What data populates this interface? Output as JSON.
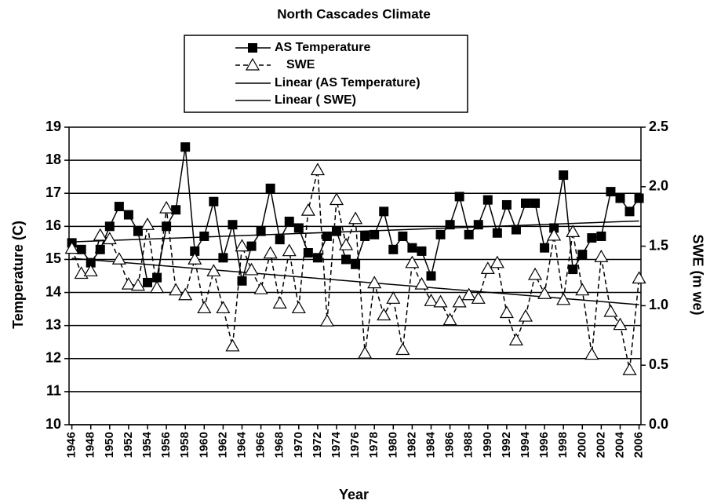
{
  "chart_data": {
    "type": "line",
    "title": "North Cascades Climate",
    "x_label": "Year",
    "y_label": "Temperature (C)",
    "y2_label": "SWE (m we)",
    "x": [
      1946,
      1947,
      1948,
      1949,
      1950,
      1951,
      1952,
      1953,
      1954,
      1955,
      1956,
      1957,
      1958,
      1959,
      1960,
      1961,
      1962,
      1963,
      1964,
      1965,
      1966,
      1967,
      1968,
      1969,
      1970,
      1971,
      1972,
      1973,
      1974,
      1975,
      1976,
      1977,
      1978,
      1979,
      1980,
      1981,
      1982,
      1983,
      1984,
      1985,
      1986,
      1987,
      1988,
      1989,
      1990,
      1991,
      1992,
      1993,
      1994,
      1995,
      1996,
      1997,
      1998,
      1999,
      2000,
      2001,
      2002,
      2003,
      2004,
      2005,
      2006
    ],
    "series": [
      {
        "name": "AS Temperature",
        "color": "#000000",
        "marker": "square",
        "dashed": false,
        "trendline": {
          "name": "Linear (AS Temperature)"
        },
        "values": [
          15.5,
          15.3,
          14.9,
          15.3,
          16.0,
          16.6,
          16.35,
          15.85,
          14.3,
          14.45,
          16.0,
          16.5,
          18.4,
          15.25,
          15.7,
          16.75,
          15.05,
          16.05,
          14.35,
          15.4,
          15.85,
          17.15,
          15.6,
          16.15,
          15.95,
          15.2,
          15.05,
          15.7,
          15.85,
          15.0,
          14.85,
          15.7,
          15.75,
          16.45,
          15.3,
          15.7,
          15.35,
          15.25,
          14.5,
          15.75,
          16.05,
          16.9,
          15.75,
          16.05,
          16.8,
          15.8,
          16.65,
          15.9,
          16.7,
          16.7,
          15.35,
          15.95,
          17.55,
          14.7,
          15.15,
          15.65,
          15.7,
          17.05,
          16.85,
          16.45,
          16.85
        ]
      },
      {
        "name": "SWE",
        "color": "#000000",
        "marker": "triangle",
        "dashed": true,
        "axis": "y2",
        "trendline": {
          "name": "Linear ( SWE)"
        },
        "values": [
          1.48,
          1.27,
          1.29,
          1.59,
          1.56,
          1.39,
          1.18,
          1.17,
          1.68,
          1.15,
          1.82,
          1.13,
          1.09,
          1.39,
          0.98,
          1.29,
          0.98,
          0.66,
          1.5,
          1.3,
          1.14,
          1.44,
          1.02,
          1.46,
          0.98,
          1.8,
          2.14,
          0.87,
          1.89,
          1.51,
          1.73,
          0.6,
          1.19,
          0.92,
          1.06,
          0.63,
          1.36,
          1.18,
          1.04,
          1.03,
          0.88,
          1.03,
          1.09,
          1.06,
          1.31,
          1.36,
          0.94,
          0.71,
          0.91,
          1.26,
          1.1,
          1.59,
          1.05,
          1.62,
          1.13,
          0.59,
          1.41,
          0.95,
          0.84,
          0.46,
          1.23
        ]
      }
    ],
    "xlim": [
      1945.7,
      2006.2
    ],
    "xticks": [
      1946,
      1948,
      1950,
      1952,
      1954,
      1956,
      1958,
      1960,
      1962,
      1964,
      1966,
      1968,
      1970,
      1972,
      1974,
      1976,
      1978,
      1980,
      1982,
      1984,
      1986,
      1988,
      1990,
      1992,
      1994,
      1996,
      1998,
      2000,
      2002,
      2004,
      2006
    ],
    "ylim": [
      10,
      19
    ],
    "yticks": [
      10,
      11,
      12,
      13,
      14,
      15,
      16,
      17,
      18,
      19
    ],
    "y2lim": [
      0,
      2.5
    ],
    "y2ticks": [
      {
        "value": 0,
        "label": "0.0"
      },
      0.5,
      {
        "value": 1,
        "label": "1.0"
      },
      1.5,
      {
        "value": 2,
        "label": "2.0"
      },
      2.5
    ],
    "grid": true
  }
}
